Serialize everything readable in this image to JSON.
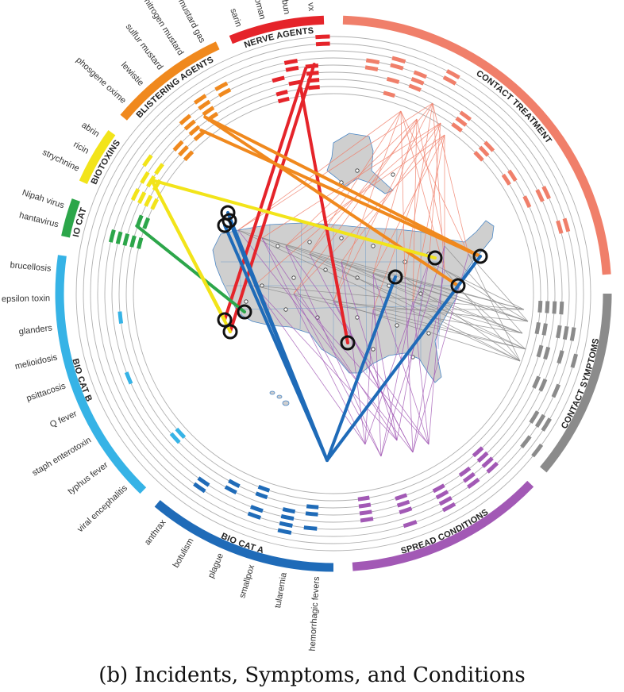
{
  "caption": "(b) Incidents, Symptoms, and Conditions",
  "categories": [
    {
      "key": "nerve",
      "label": "NERVE AGENTS",
      "color": "#e5242a",
      "agents": [
        "sarin",
        "soman",
        "tabun",
        "vx"
      ]
    },
    {
      "key": "contact_treatment",
      "label": "CONTACT TREATMENT",
      "color": "#f07f6a",
      "agents": []
    },
    {
      "key": "contact_symptoms",
      "label": "CONTACT SYMPTOMS",
      "color": "#8b8b8b",
      "agents": []
    },
    {
      "key": "spread",
      "label": "SPREAD CONDITIONS",
      "color": "#a259b5",
      "agents": []
    },
    {
      "key": "bio_a",
      "label": "BIO CAT A",
      "color": "#1f6bb8",
      "agents": [
        "hemorrhagic fevers",
        "tularemia",
        "smallpox",
        "plague",
        "botulism",
        "anthrax"
      ]
    },
    {
      "key": "bio_b",
      "label": "BIO CAT B",
      "color": "#36b3e6",
      "agents": [
        "viral encephalitis",
        "typhus fever",
        "staph enterotoxin",
        "Q fever",
        "psittacosis",
        "melioidosis",
        "glanders",
        "epsilon toxin",
        "brucellosis"
      ]
    },
    {
      "key": "bio_c",
      "label": "BIO CAT C",
      "color": "#2ca64a",
      "agents": [
        "hantavirus",
        "Nipah virus"
      ]
    },
    {
      "key": "biotoxins",
      "label": "BIOTOXINS",
      "color": "#f2e41a",
      "agents": [
        "strychnine",
        "ricin",
        "abrin"
      ]
    },
    {
      "key": "blister",
      "label": "BLISTERING AGENTS",
      "color": "#f0891e",
      "agents": [
        "phosgene oxime",
        "lewistie",
        "sulfur mustard",
        "nitrogen mustard",
        "mustard gas"
      ]
    }
  ],
  "map": {
    "land_color": "#cfcfcf",
    "border_color": "#4b87c5"
  },
  "colors": {
    "ring": "#b0b0b0",
    "incident_circle": "#111111",
    "contact_line": "#f07f6a",
    "symptom_line": "#8b8b8b",
    "spread_line": "#a259b5"
  }
}
